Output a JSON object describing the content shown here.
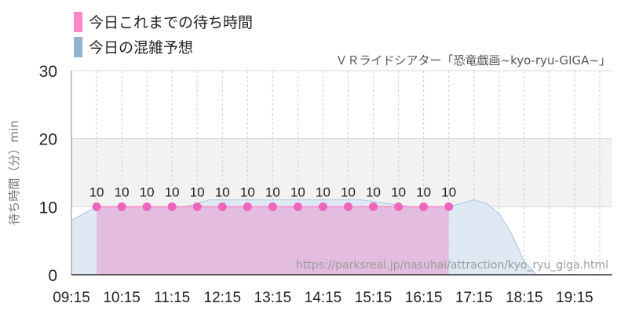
{
  "chart_data": {
    "type": "area",
    "subtitle": "ＶＲライドシアター「恐竜戯画~kyo-ryu-GIGA~」",
    "ylabel": "待ち時間（分）min",
    "ylim": [
      0,
      30
    ],
    "yticks": [
      0,
      10,
      20,
      30
    ],
    "xlim": [
      "09:15",
      "20:00"
    ],
    "xticks": [
      "09:15",
      "10:15",
      "11:15",
      "12:15",
      "13:15",
      "14:15",
      "15:15",
      "16:15",
      "17:15",
      "18:15",
      "19:15"
    ],
    "highlight_band": [
      10,
      20
    ],
    "grid": true,
    "legend_position": "top-left",
    "source_text": "https://parksreal.jp/nasuhai/attraction/kyo_ryu_giga.html",
    "series": [
      {
        "name": "今日これまでの待ち時間",
        "color": "#ff88c8",
        "marker_color": "#ee66bb",
        "fill_color": "#e3bcdf",
        "x": [
          "09:45",
          "10:15",
          "10:45",
          "11:15",
          "11:45",
          "12:15",
          "12:45",
          "13:15",
          "13:45",
          "14:15",
          "14:45",
          "15:15",
          "15:45",
          "16:15",
          "16:45"
        ],
        "values": [
          10,
          10,
          10,
          10,
          10,
          10,
          10,
          10,
          10,
          10,
          10,
          10,
          10,
          10,
          10
        ]
      },
      {
        "name": "今日の混雑予想",
        "color": "#8fb2d2",
        "fill_color": "#dce8f3",
        "stroke_color": "#a9c6e0",
        "x": [
          "09:15",
          "09:30",
          "09:45",
          "10:00",
          "10:30",
          "11:00",
          "11:30",
          "12:00",
          "12:30",
          "13:00",
          "13:30",
          "14:00",
          "14:30",
          "15:00",
          "15:30",
          "16:00",
          "16:30",
          "16:45",
          "17:00",
          "17:15",
          "17:30",
          "17:45",
          "18:00",
          "18:15",
          "18:30",
          "19:00",
          "19:30",
          "20:00"
        ],
        "values": [
          8,
          9,
          10,
          10,
          10,
          10,
          10,
          11,
          11,
          11,
          11,
          11,
          11,
          11,
          10.5,
          10,
          10,
          10,
          10.5,
          11,
          10.5,
          9,
          6,
          2,
          0,
          0,
          0,
          0
        ]
      }
    ]
  }
}
